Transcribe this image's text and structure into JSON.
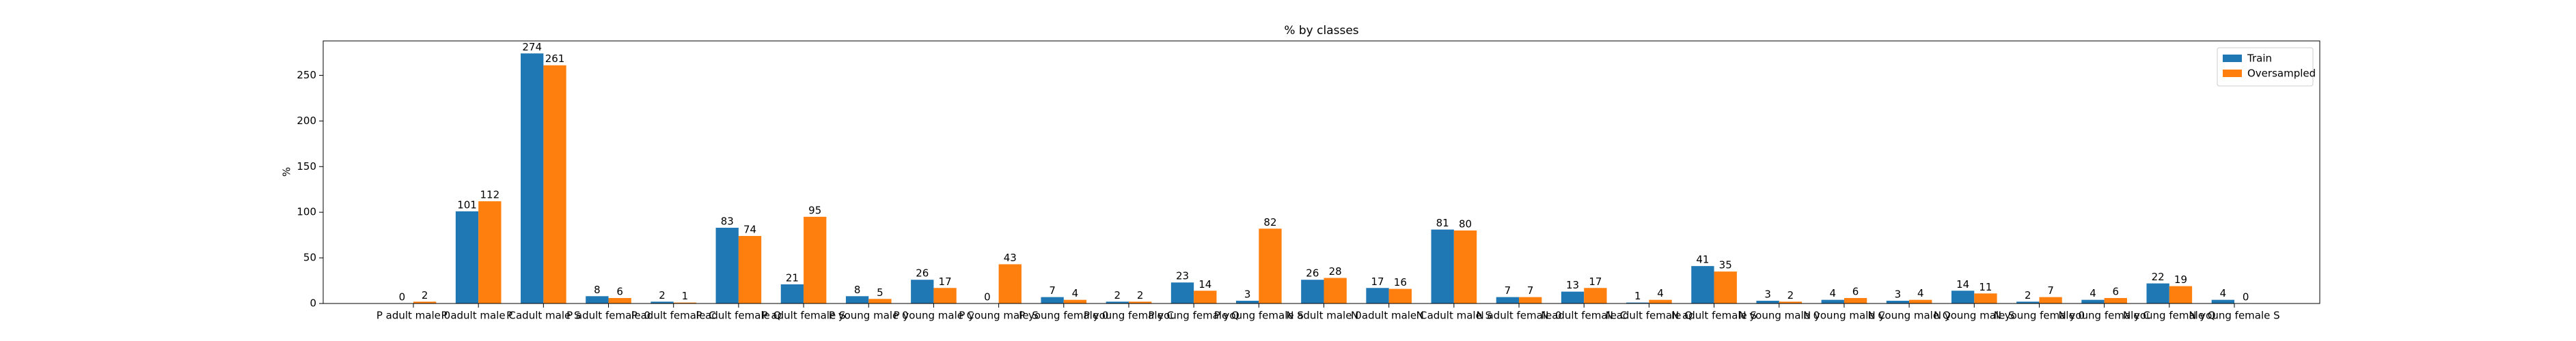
{
  "chart_data": {
    "type": "bar",
    "title": "% by classes",
    "y_label": "%",
    "categories": [
      "P adult male 0",
      "P adult male C",
      "P adult male S",
      "P adult female 0",
      "P adult female C",
      "P adult female Q",
      "P adult female S",
      "P young male 0",
      "P young male C",
      "P young male S",
      "P young female 0",
      "P young female C",
      "P young female Q",
      "P young female S",
      "N adult male 0",
      "N adult male C",
      "N adult male S",
      "N adult female 0",
      "N adult female C",
      "N adult female Q",
      "N adult female S",
      "N young male 0",
      "N young male C",
      "N young male Q",
      "N young male S",
      "N young female 0",
      "N young female C",
      "N young female Q",
      "N young female S"
    ],
    "series": [
      {
        "name": "Train",
        "color": "#1f77b4",
        "values": [
          0,
          101,
          274,
          8,
          2,
          83,
          21,
          8,
          26,
          0,
          7,
          2,
          23,
          3,
          26,
          17,
          81,
          7,
          13,
          1,
          41,
          3,
          4,
          3,
          14,
          2,
          4,
          22,
          4
        ]
      },
      {
        "name": "Oversampled",
        "color": "#ff7f0e",
        "values": [
          2,
          112,
          261,
          6,
          1,
          74,
          95,
          5,
          17,
          43,
          4,
          2,
          14,
          82,
          28,
          16,
          80,
          7,
          17,
          4,
          35,
          2,
          6,
          4,
          11,
          7,
          6,
          19,
          0
        ]
      }
    ],
    "ylim": [
      0,
      287.7
    ],
    "yticks": [
      0,
      50,
      100,
      150,
      200,
      250
    ],
    "legend": "upper right"
  }
}
